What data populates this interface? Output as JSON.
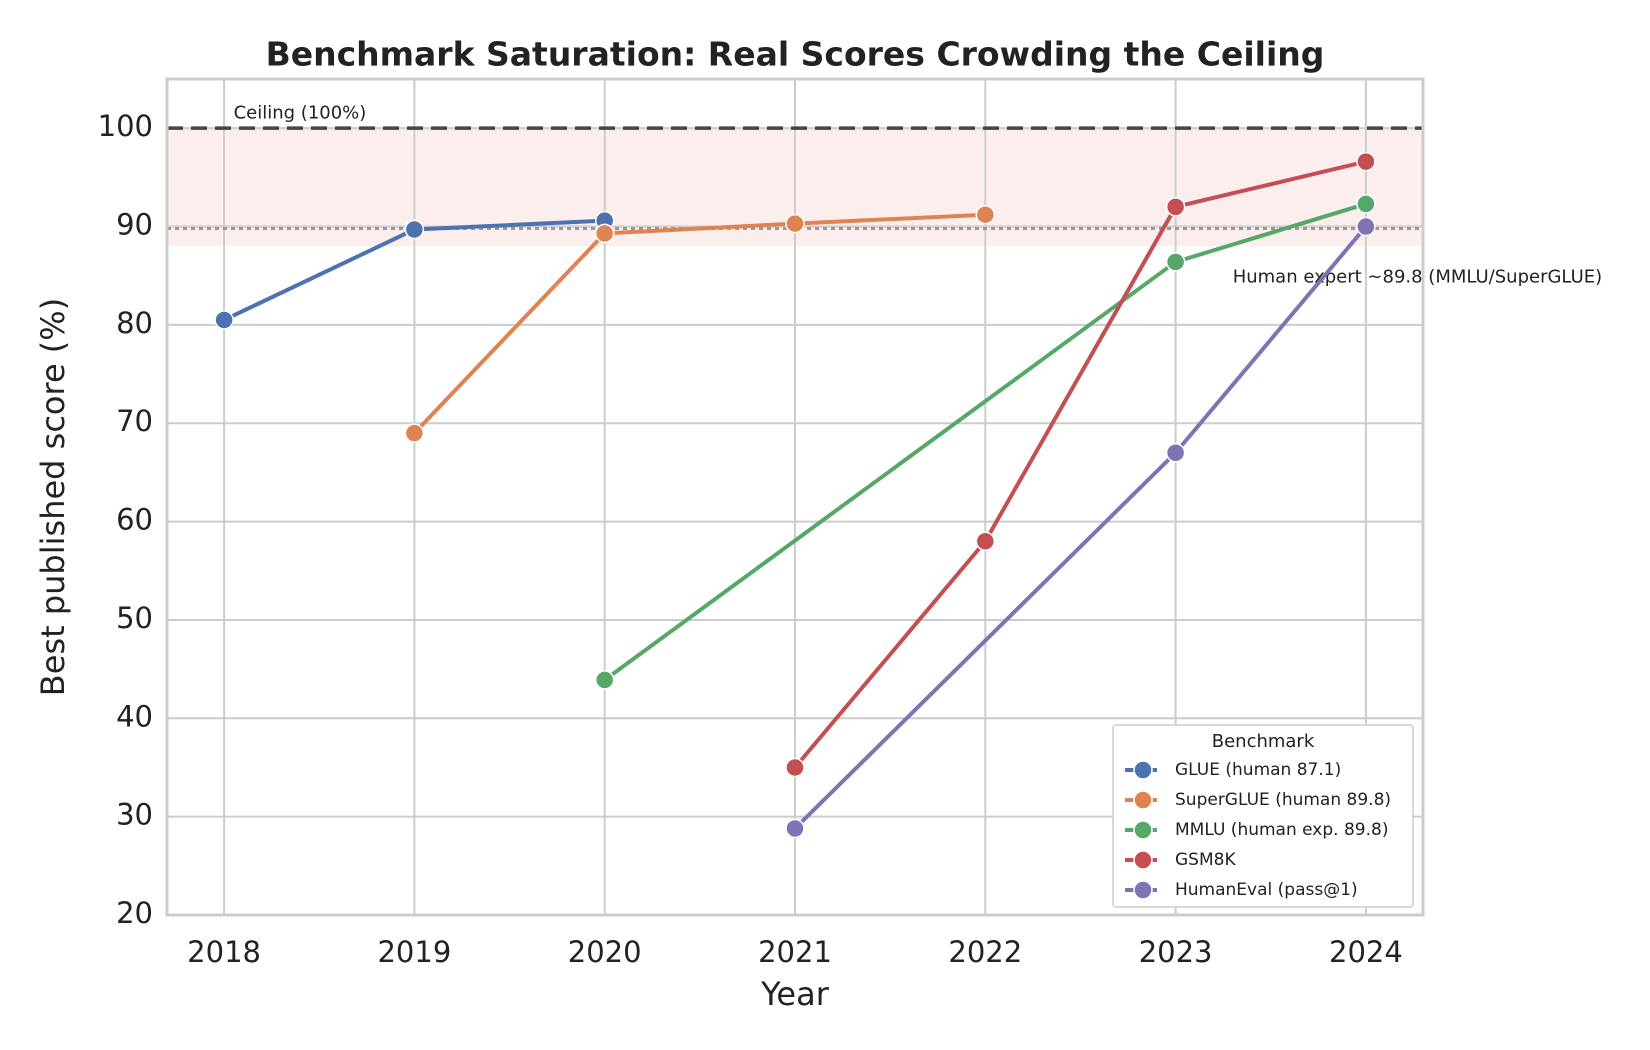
{
  "chart_data": {
    "type": "line",
    "title": "Benchmark Saturation: Real Scores Crowding the Ceiling",
    "x_label": "Year",
    "y_label": "Best published score (%)",
    "xlim": [
      2017.7,
      2024.3
    ],
    "xticks": [
      2018,
      2019,
      2020,
      2021,
      2022,
      2023,
      2024
    ],
    "ylim": [
      20,
      105
    ],
    "yticks": [
      20,
      30,
      40,
      50,
      60,
      70,
      80,
      90,
      100
    ],
    "grid": true,
    "legend_title": "Benchmark",
    "legend_position": "lower right",
    "shaded_band": {
      "range": [
        88,
        100
      ],
      "color": "#fdeeee"
    },
    "reference_lines": [
      {
        "value": 100,
        "label": "Ceiling (100%)",
        "style": "dashed",
        "color": "#444444"
      },
      {
        "value": 89.8,
        "label": "Human expert ~89.8 (MMLU/SuperGLUE)",
        "style": "dotted",
        "color": "#999999"
      }
    ],
    "series": [
      {
        "name": "GLUE (human 87.1)",
        "color": "#4c72b0",
        "x": [
          2018,
          2019,
          2020
        ],
        "values": [
          80.5,
          89.7,
          90.6
        ]
      },
      {
        "name": "SuperGLUE (human 89.8)",
        "color": "#dd8452",
        "x": [
          2019,
          2020,
          2021,
          2022
        ],
        "values": [
          69.0,
          89.3,
          90.3,
          91.2
        ]
      },
      {
        "name": "MMLU (human exp. 89.8)",
        "color": "#55a868",
        "x": [
          2020,
          2023,
          2024
        ],
        "values": [
          43.9,
          86.4,
          92.3
        ]
      },
      {
        "name": "GSM8K",
        "color": "#c44e52",
        "x": [
          2021,
          2022,
          2023,
          2024
        ],
        "values": [
          35.0,
          58.0,
          92.0,
          96.6
        ]
      },
      {
        "name": "HumanEval (pass@1)",
        "color": "#8172b3",
        "x": [
          2021,
          2023,
          2024
        ],
        "values": [
          28.8,
          67.0,
          90.0
        ]
      }
    ]
  }
}
